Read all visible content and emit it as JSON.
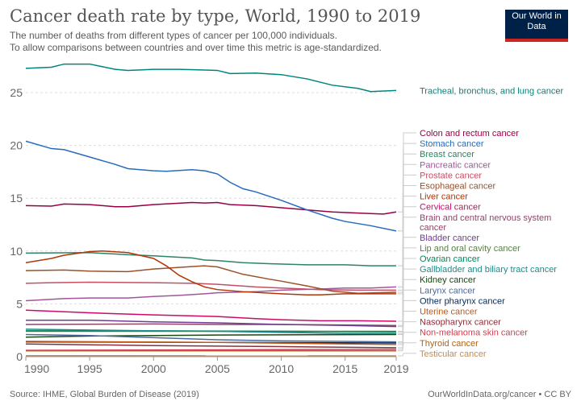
{
  "header": {
    "title": "Cancer death rate by type, World, 1990 to 2019",
    "subtitle_1": "The number of deaths from different types of cancer per 100,000 individuals.",
    "subtitle_2": "To allow comparisons between countries and over time this metric is age-standardized.",
    "logo": "Our World in Data"
  },
  "footer": {
    "source": "Source: IHME, Global Burden of Disease (2019)",
    "license": "OurWorldInData.org/cancer • CC BY"
  },
  "chart_data": {
    "type": "line",
    "title": "Cancer death rate by type, World, 1990 to 2019",
    "xlabel": "",
    "ylabel": "",
    "xlim": [
      1990,
      2019
    ],
    "ylim": [
      0,
      27.7
    ],
    "grid": "horizontal dashed",
    "legend": "right (line-end labels)",
    "x_ticks": [
      1990,
      1995,
      2000,
      2005,
      2010,
      2015,
      2019
    ],
    "y_ticks": [
      0,
      5,
      10,
      15,
      20,
      25
    ],
    "series": [
      {
        "name": "Tracheal, bronchus, and lung cancer",
        "color": "#00847E",
        "x": [
          1990,
          1992,
          1993,
          1995,
          1997,
          1998,
          2000,
          2002,
          2005,
          2006,
          2008,
          2010,
          2012,
          2014,
          2016,
          2017,
          2019
        ],
        "y": [
          27.3,
          27.4,
          27.7,
          27.7,
          27.2,
          27.1,
          27.2,
          27.2,
          27.1,
          26.8,
          26.85,
          26.7,
          26.3,
          25.7,
          25.4,
          25.1,
          25.2
        ]
      },
      {
        "name": "Colon and rectum cancer",
        "color": "#970046",
        "x": [
          1990,
          1992,
          1993,
          1995,
          1997,
          1998,
          2000,
          2003,
          2004,
          2005,
          2006,
          2008,
          2010,
          2012,
          2014,
          2016,
          2018,
          2019
        ],
        "y": [
          14.3,
          14.25,
          14.45,
          14.4,
          14.2,
          14.2,
          14.4,
          14.6,
          14.55,
          14.6,
          14.4,
          14.3,
          14.1,
          13.9,
          13.7,
          13.6,
          13.5,
          13.7
        ]
      },
      {
        "name": "Stomach cancer",
        "color": "#286BBB",
        "x": [
          1990,
          1992,
          1993,
          1995,
          1997,
          1998,
          2000,
          2001,
          2003,
          2004,
          2005,
          2006,
          2007,
          2008,
          2010,
          2012,
          2014,
          2015,
          2017,
          2019
        ],
        "y": [
          20.4,
          19.7,
          19.6,
          18.9,
          18.2,
          17.8,
          17.6,
          17.55,
          17.7,
          17.6,
          17.3,
          16.5,
          15.9,
          15.6,
          14.8,
          13.9,
          13.1,
          12.8,
          12.4,
          11.9
        ]
      },
      {
        "name": "Breast cancer",
        "color": "#2C8465",
        "x": [
          1990,
          1995,
          1998,
          2000,
          2003,
          2004,
          2005,
          2007,
          2009,
          2012,
          2015,
          2017,
          2019
        ],
        "y": [
          9.8,
          9.85,
          9.65,
          9.55,
          9.35,
          9.15,
          9.1,
          8.9,
          8.8,
          8.7,
          8.7,
          8.6,
          8.6
        ]
      },
      {
        "name": "Pancreatic cancer",
        "color": "#A2559C",
        "x": [
          1990,
          1993,
          1995,
          1998,
          2000,
          2002,
          2004,
          2005,
          2008,
          2010,
          2013,
          2015,
          2017,
          2019
        ],
        "y": [
          5.3,
          5.5,
          5.55,
          5.55,
          5.7,
          5.8,
          5.95,
          6.05,
          6.15,
          6.3,
          6.4,
          6.5,
          6.5,
          6.6
        ]
      },
      {
        "name": "Prostate cancer",
        "color": "#C15065",
        "x": [
          1990,
          1992,
          1995,
          2000,
          2003,
          2005,
          2008,
          2010,
          2013,
          2016,
          2019
        ],
        "y": [
          6.95,
          7.0,
          7.05,
          7.0,
          6.95,
          6.85,
          6.6,
          6.5,
          6.35,
          6.3,
          6.3
        ]
      },
      {
        "name": "Esophageal cancer",
        "color": "#9A5129",
        "x": [
          1990,
          1993,
          1995,
          1998,
          2000,
          2002,
          2004,
          2005,
          2007,
          2009,
          2010,
          2012,
          2014,
          2016,
          2019
        ],
        "y": [
          8.15,
          8.2,
          8.1,
          8.05,
          8.3,
          8.45,
          8.6,
          8.5,
          7.8,
          7.35,
          7.15,
          6.7,
          6.2,
          6.0,
          6.1
        ]
      },
      {
        "name": "Liver cancer",
        "color": "#B13507",
        "x": [
          1990,
          1992,
          1993,
          1995,
          1996,
          1998,
          2000,
          2001,
          2002,
          2003,
          2004,
          2005,
          2007,
          2010,
          2012,
          2013,
          2015,
          2019
        ],
        "y": [
          8.9,
          9.3,
          9.6,
          9.95,
          10.0,
          9.85,
          9.3,
          8.6,
          7.7,
          7.1,
          6.6,
          6.35,
          6.15,
          5.95,
          5.85,
          5.85,
          5.95,
          5.95
        ]
      },
      {
        "name": "Cervical cancer",
        "color": "#CF0A66",
        "x": [
          1990,
          1995,
          2000,
          2005,
          2008,
          2010,
          2013,
          2016,
          2019
        ],
        "y": [
          4.4,
          4.15,
          3.95,
          3.8,
          3.6,
          3.5,
          3.4,
          3.4,
          3.35
        ]
      },
      {
        "name": "Brain and central nervous system cancer",
        "color": "#8C4569",
        "x": [
          1990,
          2000,
          2005,
          2010,
          2015,
          2019
        ],
        "y": [
          3.05,
          3.1,
          3.05,
          3.05,
          3.0,
          2.95
        ]
      },
      {
        "name": "Bladder cancer",
        "color": "#6D3E91",
        "x": [
          1990,
          1995,
          2000,
          2005,
          2010,
          2015,
          2019
        ],
        "y": [
          3.45,
          3.45,
          3.3,
          3.2,
          3.05,
          2.95,
          2.85
        ]
      },
      {
        "name": "Lip and oral cavity cancer",
        "color": "#578145",
        "x": [
          1990,
          2000,
          2010,
          2019
        ],
        "y": [
          2.4,
          2.4,
          2.4,
          2.4
        ]
      },
      {
        "name": "Ovarian cancer",
        "color": "#00875E",
        "x": [
          1990,
          2000,
          2010,
          2019
        ],
        "y": [
          2.45,
          2.45,
          2.4,
          2.35
        ]
      },
      {
        "name": "Gallbladder and biliary tract cancer",
        "color": "#1E8C8A",
        "x": [
          1990,
          1993,
          2000,
          2005,
          2010,
          2015,
          2019
        ],
        "y": [
          2.6,
          2.55,
          2.45,
          2.4,
          2.3,
          2.2,
          2.2
        ]
      },
      {
        "name": "Kidney cancer",
        "color": "#18470F",
        "x": [
          1990,
          1995,
          2005,
          2019
        ],
        "y": [
          1.85,
          1.95,
          2.05,
          2.1
        ]
      },
      {
        "name": "Larynx cancer",
        "color": "#4C6A9C",
        "x": [
          1990,
          1995,
          2000,
          2005,
          2010,
          2019
        ],
        "y": [
          2.1,
          2.0,
          1.8,
          1.6,
          1.5,
          1.4
        ]
      },
      {
        "name": "Other pharynx cancer",
        "color": "#00295B",
        "x": [
          1990,
          2005,
          2019
        ],
        "y": [
          1.4,
          1.35,
          1.3
        ]
      },
      {
        "name": "Uterine cancer",
        "color": "#C05917",
        "x": [
          1990,
          2005,
          2019
        ],
        "y": [
          1.45,
          1.35,
          1.15
        ]
      },
      {
        "name": "Nasopharynx cancer",
        "color": "#883039",
        "x": [
          1990,
          2000,
          2010,
          2019
        ],
        "y": [
          1.2,
          1.05,
          0.95,
          0.85
        ]
      },
      {
        "name": "Non-melanoma skin cancer",
        "color": "#D73C50",
        "x": [
          1990,
          2005,
          2019
        ],
        "y": [
          0.6,
          0.65,
          0.7
        ]
      },
      {
        "name": "Thyroid cancer",
        "color": "#B16214",
        "x": [
          1990,
          2005,
          2019
        ],
        "y": [
          0.55,
          0.55,
          0.55
        ]
      },
      {
        "name": "Testicular cancer",
        "color": "#BC8E5A",
        "x": [
          1990,
          2019
        ],
        "y": [
          0.1,
          0.08
        ]
      }
    ]
  }
}
